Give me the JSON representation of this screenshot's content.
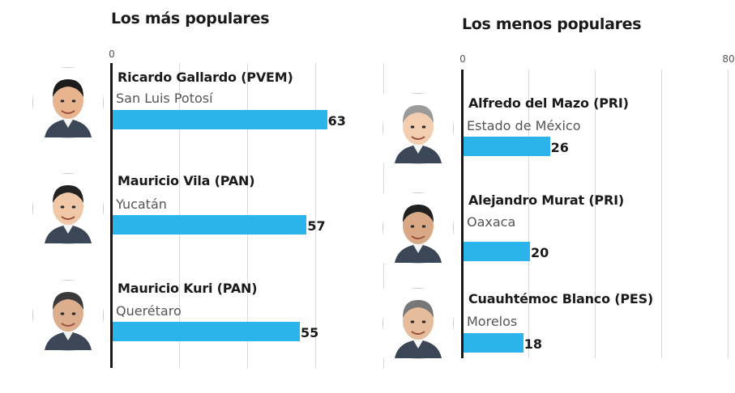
{
  "chart_data": [
    {
      "type": "bar",
      "orientation": "horizontal",
      "title": "Los más populares",
      "xlim": [
        0,
        80
      ],
      "ticks": [
        {
          "value": 0,
          "label": "0"
        }
      ],
      "grid": true,
      "categories": [
        "Ricardo Gallardo (PVEM)",
        "Mauricio Vila (PAN)",
        "Mauricio Kuri (PAN)"
      ],
      "subtitles": [
        "San Luis Potosí",
        "Yucatán",
        "Querétaro"
      ],
      "values": [
        63,
        57,
        55
      ],
      "bar_color": "#2bb4ec"
    },
    {
      "type": "bar",
      "orientation": "horizontal",
      "title": "Los menos populares",
      "xlim": [
        0,
        80
      ],
      "ticks": [
        {
          "value": 0,
          "label": "0"
        },
        {
          "value": 80,
          "label": "80"
        }
      ],
      "grid": true,
      "categories": [
        "Alfredo del Mazo (PRI)",
        "Alejandro Murat (PRI)",
        "Cuauhtémoc Blanco (PES)"
      ],
      "subtitles": [
        "Estado de México",
        "Oaxaca",
        "Morelos"
      ],
      "values": [
        26,
        20,
        18
      ],
      "bar_color": "#2bb4ec"
    }
  ]
}
